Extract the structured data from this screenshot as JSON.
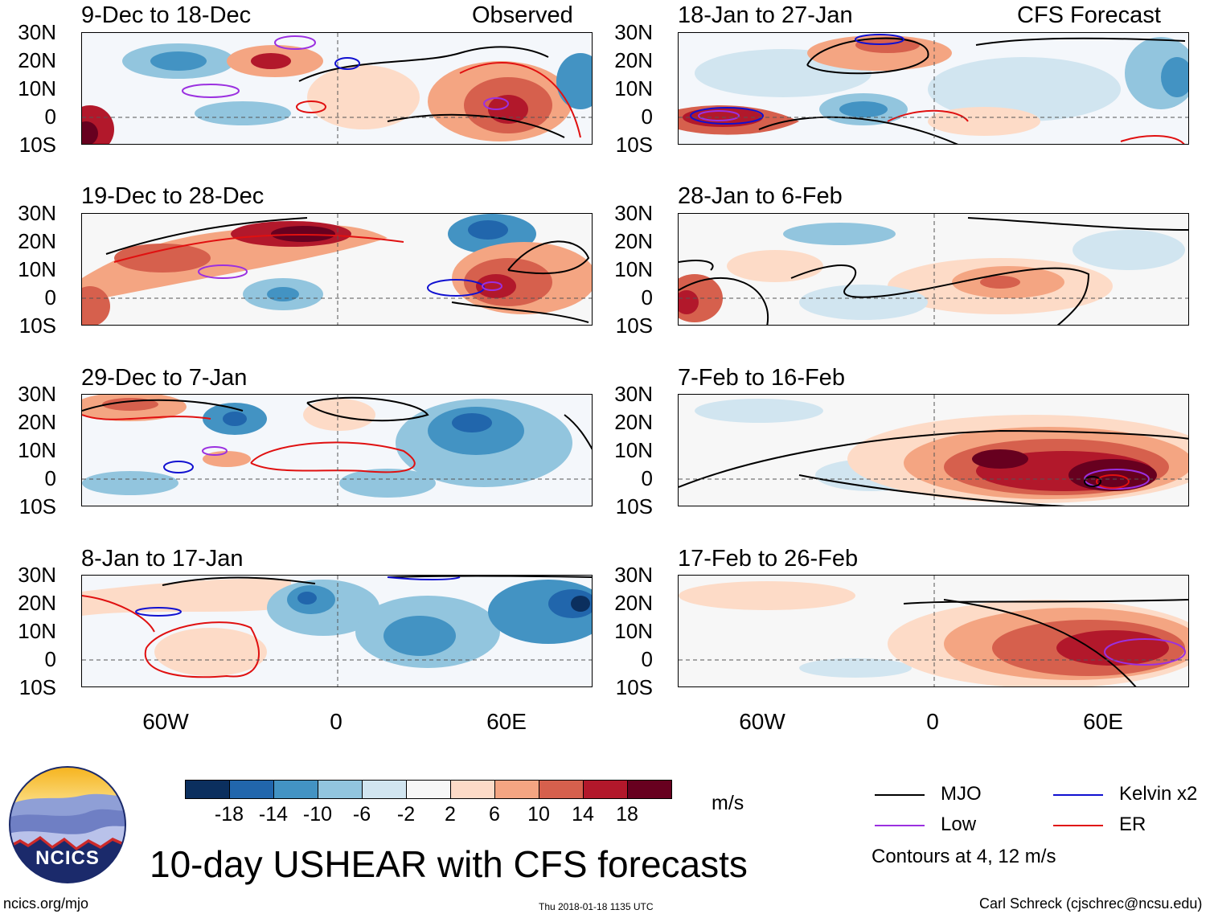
{
  "left_column": {
    "header_right": "Observed",
    "panels": [
      {
        "title": "9-Dec to 18-Dec"
      },
      {
        "title": "19-Dec to 28-Dec"
      },
      {
        "title": "29-Dec to 7-Jan"
      },
      {
        "title": "8-Jan to 17-Jan"
      }
    ]
  },
  "right_column": {
    "header_right": "CFS Forecast",
    "panels": [
      {
        "title": "18-Jan to 27-Jan"
      },
      {
        "title": "28-Jan to 6-Feb"
      },
      {
        "title": "7-Feb to 16-Feb"
      },
      {
        "title": "17-Feb to 26-Feb"
      }
    ]
  },
  "axes": {
    "lat_labels": [
      "30N",
      "20N",
      "10N",
      "0",
      "10S"
    ],
    "lon_labels": [
      "60W",
      "0",
      "60E"
    ]
  },
  "colorbar": {
    "labels": [
      "-18",
      "-14",
      "-10",
      "-6",
      "-2",
      "2",
      "6",
      "10",
      "14",
      "18"
    ],
    "colors": [
      "#0b2f5e",
      "#2166ac",
      "#4393c3",
      "#92c5de",
      "#d1e5f0",
      "#f7f7f7",
      "#fddbc7",
      "#f4a582",
      "#d6604d",
      "#b2182b",
      "#67001f"
    ],
    "units": "m/s"
  },
  "legend": {
    "items": [
      {
        "label": "MJO",
        "color": "#000000"
      },
      {
        "label": "Kelvin x2",
        "color": "#1010d0"
      },
      {
        "label": "Low",
        "color": "#9b30e0"
      },
      {
        "label": "ER",
        "color": "#e01010"
      }
    ],
    "note": "Contours at 4, 12 m/s"
  },
  "logo": {
    "text": "NCICS"
  },
  "main_title": "10-day USHEAR with CFS forecasts",
  "footer": {
    "site": "ncics.org/mjo",
    "timestamp": "Thu 2018-01-18 1135 UTC",
    "author": "Carl Schreck (cjschrec@ncsu.edu)"
  }
}
